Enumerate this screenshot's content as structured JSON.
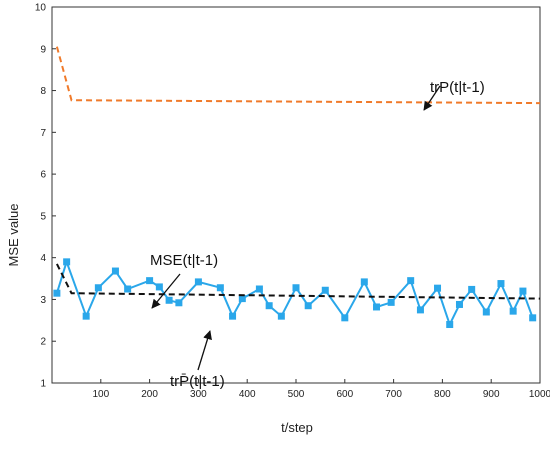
{
  "chart_data": {
    "type": "line",
    "xlabel": "t/step",
    "ylabel": "MSE value",
    "xlim": [
      0,
      1000
    ],
    "ylim": [
      1,
      10
    ],
    "xticks": [
      100,
      200,
      300,
      400,
      500,
      600,
      700,
      800,
      900,
      1000
    ],
    "yticks": [
      1,
      2,
      3,
      4,
      5,
      6,
      7,
      8,
      9,
      10
    ],
    "grid": false,
    "series": [
      {
        "name": "trP(t|t-1)",
        "style": "dashed",
        "color": "#f07a2a",
        "x": [
          10,
          40,
          1000
        ],
        "y": [
          9.05,
          7.77,
          7.7
        ]
      },
      {
        "name": "MSE(t|t-1)",
        "style": "solid-with-square-markers",
        "color": "#2aa7ea",
        "x": [
          10,
          30,
          70,
          95,
          130,
          155,
          200,
          220,
          240,
          260,
          300,
          345,
          370,
          390,
          425,
          445,
          470,
          500,
          525,
          560,
          600,
          640,
          665,
          695,
          735,
          755,
          790,
          815,
          835,
          860,
          890,
          920,
          945,
          965,
          985
        ],
        "y": [
          3.15,
          3.9,
          2.6,
          3.28,
          3.68,
          3.25,
          3.45,
          3.3,
          2.98,
          2.92,
          3.42,
          3.28,
          2.6,
          3.02,
          3.25,
          2.85,
          2.6,
          3.28,
          2.85,
          3.22,
          2.56,
          3.42,
          2.82,
          2.93,
          3.45,
          2.75,
          3.27,
          2.4,
          2.88,
          3.24,
          2.7,
          3.38,
          2.72,
          3.2,
          2.56
        ]
      },
      {
        "name": "trP̄(t|t-1)",
        "style": "dashed",
        "color": "#111111",
        "x": [
          10,
          40,
          1000
        ],
        "y": [
          3.85,
          3.15,
          3.02
        ]
      }
    ],
    "annotations": [
      {
        "text": "trP(t|t-1)",
        "target_series": 0,
        "at_x": 780,
        "at_y": 7.72
      },
      {
        "text": "MSE(t|t-1)",
        "target_series": 1,
        "at_x": 200,
        "at_y": 3.45
      },
      {
        "text": "trP̄(t|t-1)",
        "target_series": 2,
        "at_x": 310,
        "at_y": 3.08
      }
    ]
  }
}
